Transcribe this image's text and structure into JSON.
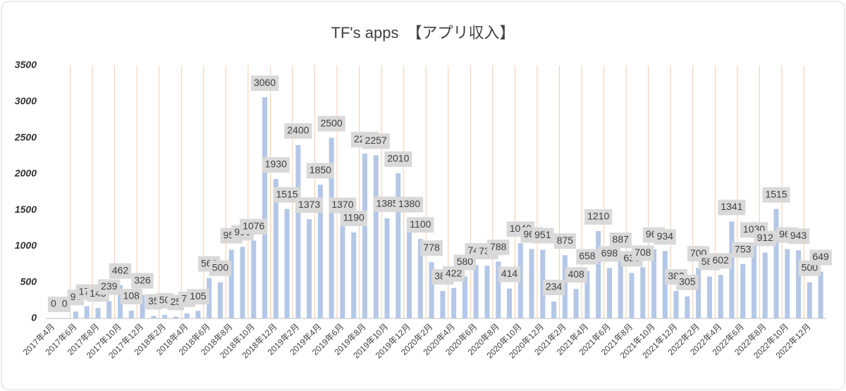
{
  "chart_data": {
    "type": "bar",
    "title": "TF's apps　【アプリ収入】",
    "categories": [
      "2017年4月",
      null,
      "2017年6月",
      null,
      "2017年8月",
      null,
      "2017年10月",
      null,
      "2017年12月",
      null,
      "2018年2月",
      null,
      "2018年4月",
      null,
      "2018年6月",
      null,
      "2018年8月",
      null,
      "2018年10月",
      null,
      "2018年12月",
      null,
      "2019年2月",
      null,
      "2019年4月",
      null,
      "2019年6月",
      null,
      "2019年8月",
      null,
      "2019年10月",
      null,
      "2019年12月",
      null,
      "2020年2月",
      null,
      "2020年4月",
      null,
      "2020年6月",
      null,
      "2020年8月",
      null,
      "2020年10月",
      null,
      "2020年12月",
      null,
      "2021年2月",
      null,
      "2021年4月",
      null,
      "2021年6月",
      null,
      "2021年8月",
      null,
      "2021年10月",
      null,
      "2021年12月",
      null,
      "2022年2月",
      null,
      "2022年4月",
      null,
      "2022年6月",
      null,
      "2022年8月",
      null,
      "2022年10月",
      null,
      "2022年12月",
      null
    ],
    "values": [
      0,
      0,
      95,
      170,
      145,
      239,
      462,
      108,
      326,
      35,
      50,
      25,
      70,
      105,
      560,
      500,
      950,
      990,
      1076,
      3060,
      1930,
      1515,
      2400,
      1373,
      1850,
      2500,
      1370,
      1190,
      2280,
      2257,
      1385,
      2010,
      1380,
      1100,
      778,
      380,
      422,
      580,
      740,
      730,
      788,
      414,
      1040,
      960,
      951,
      234,
      875,
      408,
      658,
      1210,
      698,
      887,
      630,
      708,
      960,
      934,
      380,
      305,
      700,
      580,
      602,
      1341,
      753,
      1030,
      912,
      1515,
      960,
      943,
      500,
      649
    ],
    "color": "#b4c7e7",
    "ylim": [
      0,
      3500
    ],
    "yticks": [
      0,
      500,
      1000,
      1500,
      2000,
      2500,
      3000,
      3500
    ],
    "grid": true
  }
}
